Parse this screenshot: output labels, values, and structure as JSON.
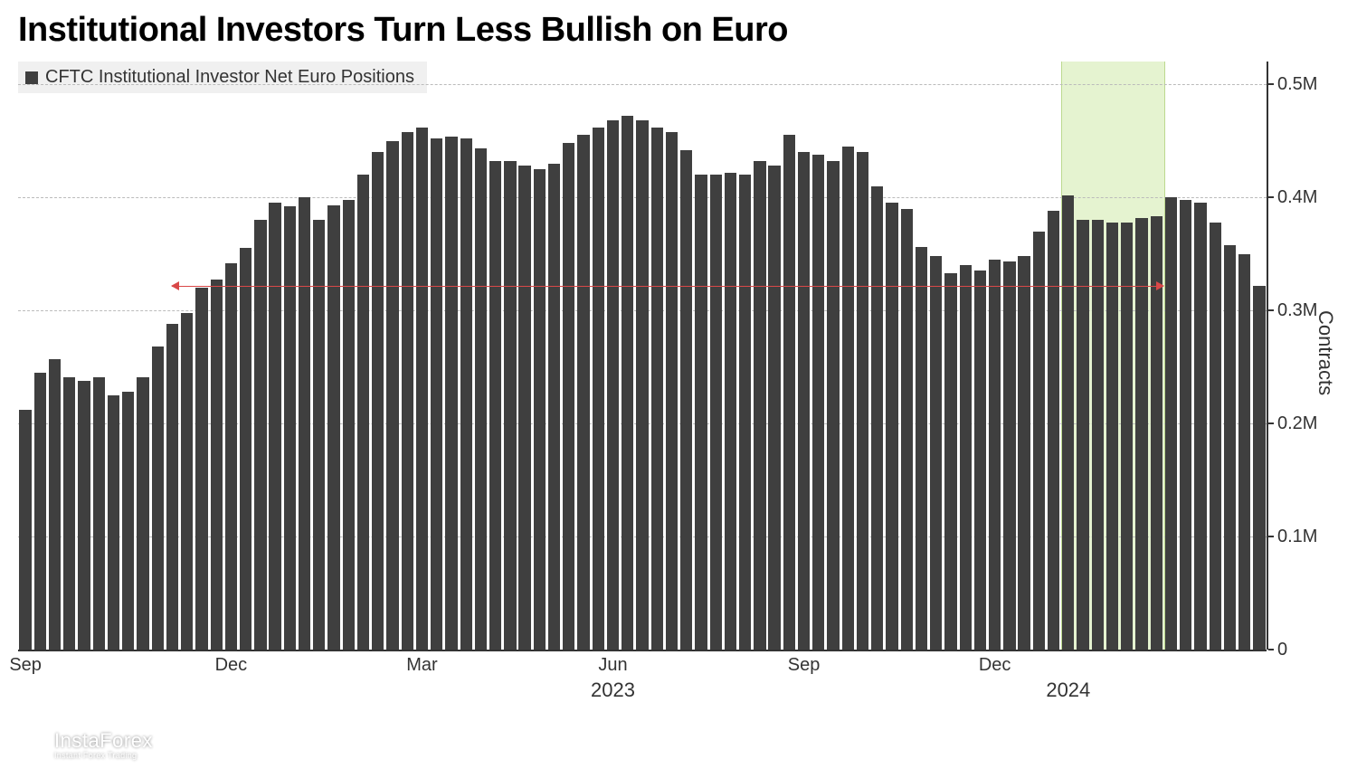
{
  "title": "Institutional Investors Turn Less Bullish on Euro",
  "legend": {
    "label": "CFTC Institutional Investor Net Euro Positions",
    "swatch_color": "#3f3f3f"
  },
  "watermark": {
    "brand": "InstaForex",
    "tagline": "Instant Forex Trading",
    "icon_color": "#ffffff"
  },
  "chart": {
    "type": "bar",
    "bar_color": "#3f3f3f",
    "bar_gap_ratio": 0.18,
    "background_color": "#ffffff",
    "grid_color": "#bbbbbb",
    "axis_color": "#333333",
    "highlight": {
      "start_index": 71,
      "end_index": 77,
      "color": "rgba(180,220,120,0.35)"
    },
    "reference_line": {
      "value_m": 0.322,
      "color": "#d94848",
      "start_index": 10,
      "end_index": 77
    },
    "y_axis": {
      "title": "Contracts",
      "ylim_m": [
        0,
        0.52
      ],
      "ticks_m": [
        0,
        0.1,
        0.2,
        0.3,
        0.4,
        0.5
      ],
      "tick_labels": [
        "0",
        "0.1M",
        "0.2M",
        "0.3M",
        "0.4M",
        "0.5M"
      ],
      "gridlines_m": [
        0.1,
        0.2,
        0.3,
        0.4,
        0.5
      ],
      "label_fontsize": 20,
      "title_fontsize": 22
    },
    "x_axis": {
      "month_labels": [
        {
          "index": 0,
          "text": "Sep"
        },
        {
          "index": 14,
          "text": "Dec"
        },
        {
          "index": 27,
          "text": "Mar"
        },
        {
          "index": 40,
          "text": "Jun"
        },
        {
          "index": 53,
          "text": "Sep"
        },
        {
          "index": 66,
          "text": "Dec"
        }
      ],
      "year_labels": [
        {
          "index": 40,
          "text": "2023"
        },
        {
          "index": 71,
          "text": "2024"
        }
      ],
      "label_fontsize": 20
    },
    "values_m": [
      0.212,
      0.245,
      0.257,
      0.241,
      0.238,
      0.241,
      0.225,
      0.228,
      0.241,
      0.268,
      0.288,
      0.298,
      0.32,
      0.327,
      0.342,
      0.355,
      0.38,
      0.395,
      0.392,
      0.4,
      0.38,
      0.393,
      0.398,
      0.42,
      0.44,
      0.45,
      0.458,
      0.462,
      0.452,
      0.454,
      0.452,
      0.443,
      0.432,
      0.432,
      0.428,
      0.425,
      0.43,
      0.448,
      0.455,
      0.462,
      0.468,
      0.472,
      0.468,
      0.462,
      0.458,
      0.442,
      0.42,
      0.42,
      0.422,
      0.42,
      0.432,
      0.428,
      0.455,
      0.44,
      0.438,
      0.432,
      0.445,
      0.44,
      0.41,
      0.395,
      0.39,
      0.356,
      0.348,
      0.333,
      0.34,
      0.335,
      0.345,
      0.343,
      0.348,
      0.37,
      0.388,
      0.402,
      0.38,
      0.38,
      0.378,
      0.378,
      0.382,
      0.383,
      0.4,
      0.398,
      0.395,
      0.378,
      0.358,
      0.35,
      0.322
    ]
  }
}
